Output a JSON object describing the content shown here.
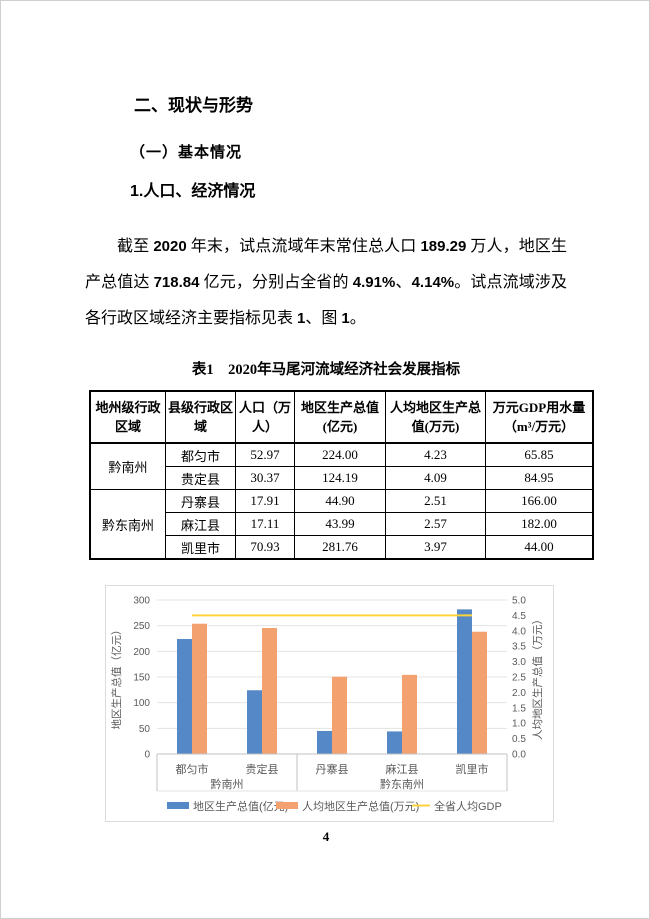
{
  "page": {
    "number": "4"
  },
  "headings": {
    "h1": "二、现状与形势",
    "h2": "（一）基本情况",
    "h3": "1.人口、经济情况"
  },
  "paragraph": {
    "segments": [
      {
        "t": "截至 ",
        "s": "kai"
      },
      {
        "t": "2020",
        "s": "num"
      },
      {
        "t": " 年末，试点流域年末常住总人口 ",
        "s": "kai"
      },
      {
        "t": "189.29",
        "s": "num"
      },
      {
        "t": " 万人，地区生产总值达 ",
        "s": "kai"
      },
      {
        "t": "718.84",
        "s": "num"
      },
      {
        "t": " 亿元，分别占全省的 ",
        "s": "kai"
      },
      {
        "t": "4.91%",
        "s": "num"
      },
      {
        "t": "、",
        "s": "kai"
      },
      {
        "t": "4.14%",
        "s": "num"
      },
      {
        "t": "。试点流域涉及各行政区域经济主要指标见表 ",
        "s": "kai"
      },
      {
        "t": "1",
        "s": "num"
      },
      {
        "t": "、图 ",
        "s": "kai"
      },
      {
        "t": "1",
        "s": "num"
      },
      {
        "t": "。",
        "s": "kai"
      }
    ]
  },
  "table": {
    "title": "表1　2020年马尾河流域经济社会发展指标",
    "headers": [
      "地州级行政区域",
      "县级行政区域",
      "人口（万人）",
      "地区生产总值(亿元)",
      "人均地区生产总值(万元)",
      "万元GDP用水量（m³/万元）"
    ],
    "groups": [
      {
        "region": "黔南州",
        "rows": [
          {
            "county": "都匀市",
            "population": "52.97",
            "gdp": "224.00",
            "gdp_per_capita": "4.23",
            "water_per_gdp": "65.85"
          },
          {
            "county": "贵定县",
            "population": "30.37",
            "gdp": "124.19",
            "gdp_per_capita": "4.09",
            "water_per_gdp": "84.95"
          }
        ]
      },
      {
        "region": "黔东南州",
        "rows": [
          {
            "county": "丹寨县",
            "population": "17.91",
            "gdp": "44.90",
            "gdp_per_capita": "2.51",
            "water_per_gdp": "166.00"
          },
          {
            "county": "麻江县",
            "population": "17.11",
            "gdp": "43.99",
            "gdp_per_capita": "2.57",
            "water_per_gdp": "182.00"
          },
          {
            "county": "凯里市",
            "population": "70.93",
            "gdp": "281.76",
            "gdp_per_capita": "3.97",
            "water_per_gdp": "44.00"
          }
        ]
      }
    ]
  },
  "chart_data": {
    "type": "bar",
    "categories": [
      "都匀市",
      "贵定县",
      "丹寨县",
      "麻江县",
      "凯里市"
    ],
    "category_groups": [
      {
        "label": "黔南州",
        "span": 2
      },
      {
        "label": "黔东南州",
        "span": 3
      }
    ],
    "series": [
      {
        "name": "地区生产总值(亿元)",
        "type": "bar",
        "axis": "left",
        "color": "#5588C7",
        "values": [
          224.0,
          124.19,
          44.9,
          43.99,
          281.76
        ]
      },
      {
        "name": "人均地区生产总值(万元)",
        "type": "bar",
        "axis": "right",
        "color": "#F2A16F",
        "values": [
          4.23,
          4.09,
          2.51,
          2.57,
          3.97
        ]
      },
      {
        "name": "全省人均GDP",
        "type": "line",
        "axis": "right",
        "color": "#FFD23C",
        "values": [
          4.5,
          4.5,
          4.5,
          4.5,
          4.5
        ]
      }
    ],
    "left_axis": {
      "label": "地区生产总值（亿元）",
      "min": 0,
      "max": 300,
      "ticks": [
        "0",
        "50",
        "100",
        "150",
        "200",
        "250",
        "300"
      ]
    },
    "right_axis": {
      "label": "人均地区生产总值（万元）",
      "min": 0,
      "max": 5,
      "ticks": [
        "0.0",
        "0.5",
        "1.0",
        "1.5",
        "2.0",
        "2.5",
        "3.0",
        "3.5",
        "4.0",
        "4.5",
        "5.0"
      ]
    },
    "legend": [
      "地区生产总值(亿元)",
      "人均地区生产总值(万元)",
      "全省人均GDP"
    ],
    "legend_position": "bottom",
    "grid": true,
    "colors": {
      "grid_line": "#e3e3e3",
      "axis_line": "#c0c0c0",
      "text": "#595959",
      "chart_border": "#dcdcdc"
    }
  }
}
